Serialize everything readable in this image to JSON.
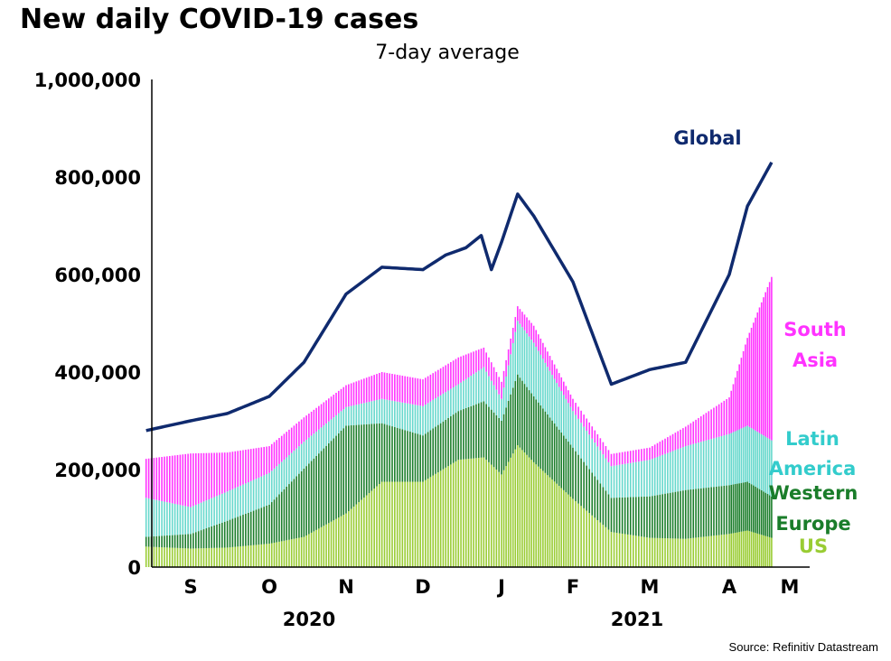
{
  "title": "New daily COVID-19 cases",
  "subtitle": "7-day average",
  "source": "Source: Refinitiv Datastream",
  "chart_data": {
    "type": "bar",
    "stacked": true,
    "y_ticks": [
      "0",
      "200,000",
      "400,000",
      "600,000",
      "800,000",
      "1,000,000"
    ],
    "ylim": [
      0,
      1000000
    ],
    "x_ticks": [
      "S",
      "O",
      "N",
      "D",
      "J",
      "F",
      "M",
      "A",
      "M"
    ],
    "years": [
      "2020",
      "2021"
    ],
    "x": [
      "2020-08-15",
      "2020-09-01",
      "2020-09-15",
      "2020-10-01",
      "2020-10-15",
      "2020-11-01",
      "2020-11-15",
      "2020-12-01",
      "2020-12-15",
      "2020-12-25",
      "2021-01-01",
      "2021-01-08",
      "2021-01-15",
      "2021-02-01",
      "2021-02-15",
      "2021-03-01",
      "2021-03-15",
      "2021-04-01",
      "2021-04-10",
      "2021-04-22"
    ],
    "series": [
      {
        "name": "US",
        "color": "#99cc33",
        "values": [
          42000,
          38000,
          40000,
          48000,
          62000,
          110000,
          175000,
          175000,
          220000,
          225000,
          190000,
          250000,
          215000,
          140000,
          72000,
          60000,
          58000,
          68000,
          75000,
          60000
        ]
      },
      {
        "name": "Western Europe",
        "color": "#1a7d2a",
        "values": [
          20000,
          30000,
          55000,
          80000,
          140000,
          180000,
          120000,
          95000,
          100000,
          115000,
          110000,
          145000,
          135000,
          105000,
          70000,
          85000,
          100000,
          100000,
          100000,
          85000
        ]
      },
      {
        "name": "Latin America",
        "color": "#66d8cc",
        "values": [
          80000,
          55000,
          60000,
          65000,
          55000,
          38000,
          50000,
          60000,
          55000,
          70000,
          45000,
          110000,
          110000,
          75000,
          65000,
          75000,
          90000,
          105000,
          115000,
          115000
        ]
      },
      {
        "name": "South Asia",
        "color": "#ff33ff",
        "values": [
          80000,
          110000,
          80000,
          55000,
          50000,
          45000,
          55000,
          55000,
          55000,
          40000,
          35000,
          30000,
          35000,
          25000,
          25000,
          25000,
          40000,
          75000,
          180000,
          335000
        ]
      }
    ],
    "global": {
      "name": "Global",
      "color": "#0f2a6e",
      "x": [
        "2020-08-15",
        "2020-09-01",
        "2020-09-15",
        "2020-10-01",
        "2020-10-15",
        "2020-11-01",
        "2020-11-15",
        "2020-12-01",
        "2020-12-10",
        "2020-12-18",
        "2020-12-24",
        "2020-12-28",
        "2021-01-08",
        "2021-01-15",
        "2021-02-01",
        "2021-02-15",
        "2021-03-01",
        "2021-03-15",
        "2021-04-01",
        "2021-04-10",
        "2021-04-22"
      ],
      "values": [
        280000,
        300000,
        315000,
        350000,
        420000,
        560000,
        615000,
        610000,
        640000,
        655000,
        680000,
        610000,
        765000,
        720000,
        585000,
        375000,
        405000,
        420000,
        600000,
        740000,
        830000
      ]
    },
    "labels": {
      "global": "Global",
      "south_asia": [
        "South",
        "Asia"
      ],
      "latin_america": [
        "Latin",
        "America"
      ],
      "western_europe": [
        "Western",
        "Europe"
      ],
      "us": "US"
    }
  }
}
